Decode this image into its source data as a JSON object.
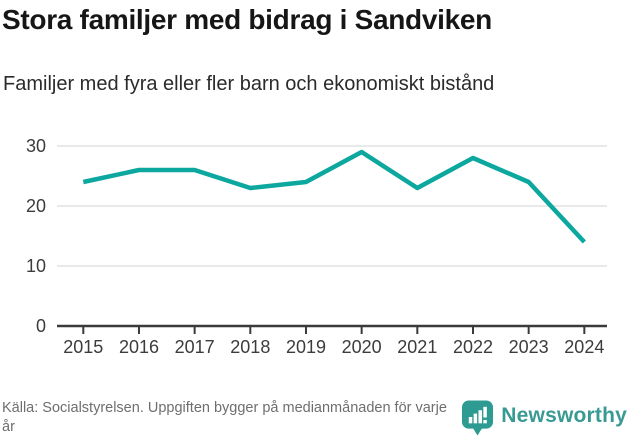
{
  "header": {
    "title": "Stora familjer med bidrag i Sandviken",
    "subtitle": "Familjer med fyra eller fler barn och ekonomiskt bistånd"
  },
  "chart_data": {
    "type": "line",
    "title": "Stora familjer med bidrag i Sandviken",
    "subtitle": "Familjer med fyra eller fler barn och ekonomiskt bistånd",
    "categories": [
      "2015",
      "2016",
      "2017",
      "2018",
      "2019",
      "2020",
      "2021",
      "2022",
      "2023",
      "2024"
    ],
    "values": [
      24,
      26,
      26,
      23,
      24,
      29,
      23,
      28,
      24,
      14
    ],
    "xlabel": "",
    "ylabel": "",
    "ylim": [
      0,
      30
    ],
    "yticks": [
      0,
      10,
      20,
      30
    ],
    "grid": true,
    "legend": "none"
  },
  "footer": {
    "source": "Källa: Socialstyrelsen. Uppgiften bygger på medianmånaden för varje år",
    "brand": "Newsworthy"
  },
  "colors": {
    "line": "#0CA79E",
    "grid": "#DCDCDC",
    "axis": "#3A3A3A",
    "title_text": "#161616",
    "muted_text": "#6E6E6E",
    "brand_teal": "#399A94",
    "logo_fill": "#2E9B93"
  }
}
